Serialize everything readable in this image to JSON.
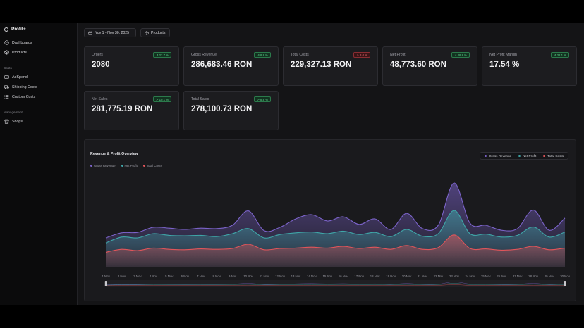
{
  "app": {
    "name": "Profit+"
  },
  "sidebar": {
    "items": [
      {
        "label": "Dashboards",
        "icon": "dashboard-icon"
      },
      {
        "label": "Products",
        "icon": "box-icon"
      }
    ],
    "costs_section": "Costs",
    "costs_items": [
      {
        "label": "AdSpend",
        "icon": "ad-icon"
      },
      {
        "label": "Shipping Costs",
        "icon": "truck-icon"
      },
      {
        "label": "Custom Costs",
        "icon": "list-icon"
      }
    ],
    "management_section": "Management",
    "management_items": [
      {
        "label": "Shops",
        "icon": "store-icon"
      }
    ]
  },
  "filters": {
    "date_range": "Nov 1 - Nov 30, 2025",
    "products": "Products"
  },
  "metrics": [
    {
      "title": "Orders",
      "value": "2080",
      "badge": "↗ 22.7 %",
      "trend": "up"
    },
    {
      "title": "Gross Revenue",
      "value": "286,683.46 RON",
      "badge": "↗ 8.8 %",
      "trend": "up"
    },
    {
      "title": "Total Costs",
      "value": "229,327.13 RON",
      "badge": "↘ 8.0 %",
      "trend": "down"
    },
    {
      "title": "Net Profit",
      "value": "48,773.60 RON",
      "badge": "↗ 48.8 %",
      "trend": "up"
    },
    {
      "title": "Net Profit Margin",
      "value": "17.54 %",
      "badge": "↗ 32.1 %",
      "trend": "up"
    },
    {
      "title": "Net Sales",
      "value": "281,775.19 RON",
      "badge": "↗ 10.1 %",
      "trend": "up"
    },
    {
      "title": "Total Sales",
      "value": "278,100.73 RON",
      "badge": "↗ 8.8 %",
      "trend": "up"
    }
  ],
  "colors": {
    "gross": "#7b63c9",
    "net": "#3fa6a8",
    "costs": "#e0555a",
    "badge_up": "#5fd38d",
    "badge_down": "#f07178"
  },
  "overview": {
    "title": "Revenue & Profit Overview",
    "toggles": [
      "Gross Revenue",
      "Net Profit",
      "Total Costs"
    ],
    "legend": [
      "Gross Revenue",
      "Net Profit",
      "Total Costs"
    ]
  },
  "chart_data": {
    "type": "area",
    "x": [
      "1 Nov",
      "2 Nov",
      "3 Nov",
      "4 Nov",
      "5 Nov",
      "6 Nov",
      "7 Nov",
      "8 Nov",
      "9 Nov",
      "10 Nov",
      "11 Nov",
      "12 Nov",
      "13 Nov",
      "14 Nov",
      "15 Nov",
      "16 Nov",
      "17 Nov",
      "18 Nov",
      "19 Nov",
      "20 Nov",
      "21 Nov",
      "22 Nov",
      "23 Nov",
      "24 Nov",
      "25 Nov",
      "26 Nov",
      "27 Nov",
      "28 Nov",
      "29 Nov",
      "30 Nov"
    ],
    "series": [
      {
        "name": "Gross Revenue",
        "values": [
          7.0,
          8.2,
          8.3,
          9.5,
          9.3,
          9.0,
          9.3,
          9.2,
          10.0,
          13.4,
          8.7,
          9.5,
          11.5,
          12.5,
          11.0,
          12.0,
          10.2,
          11.5,
          9.0,
          12.8,
          9.2,
          10.0,
          20.0,
          10.5,
          10.0,
          8.8,
          9.2,
          13.6,
          8.8,
          11.7
        ]
      },
      {
        "name": "Net Profit",
        "values": [
          5.8,
          7.2,
          7.0,
          8.0,
          7.6,
          7.5,
          7.6,
          7.3,
          8.0,
          9.2,
          7.0,
          7.8,
          8.2,
          8.4,
          8.0,
          8.6,
          7.8,
          8.3,
          7.3,
          9.0,
          7.4,
          8.0,
          13.5,
          8.0,
          7.9,
          7.2,
          7.6,
          9.6,
          7.2,
          8.4
        ]
      },
      {
        "name": "Total Costs",
        "values": [
          3.6,
          4.3,
          4.0,
          4.6,
          4.3,
          4.2,
          4.4,
          4.3,
          4.5,
          5.5,
          4.2,
          4.5,
          4.6,
          4.8,
          4.6,
          5.0,
          4.5,
          4.8,
          4.3,
          5.2,
          4.3,
          4.7,
          7.7,
          4.5,
          4.4,
          4.1,
          4.3,
          5.0,
          4.2,
          4.6
        ]
      }
    ],
    "grid": false,
    "legend_position": "top-left"
  }
}
